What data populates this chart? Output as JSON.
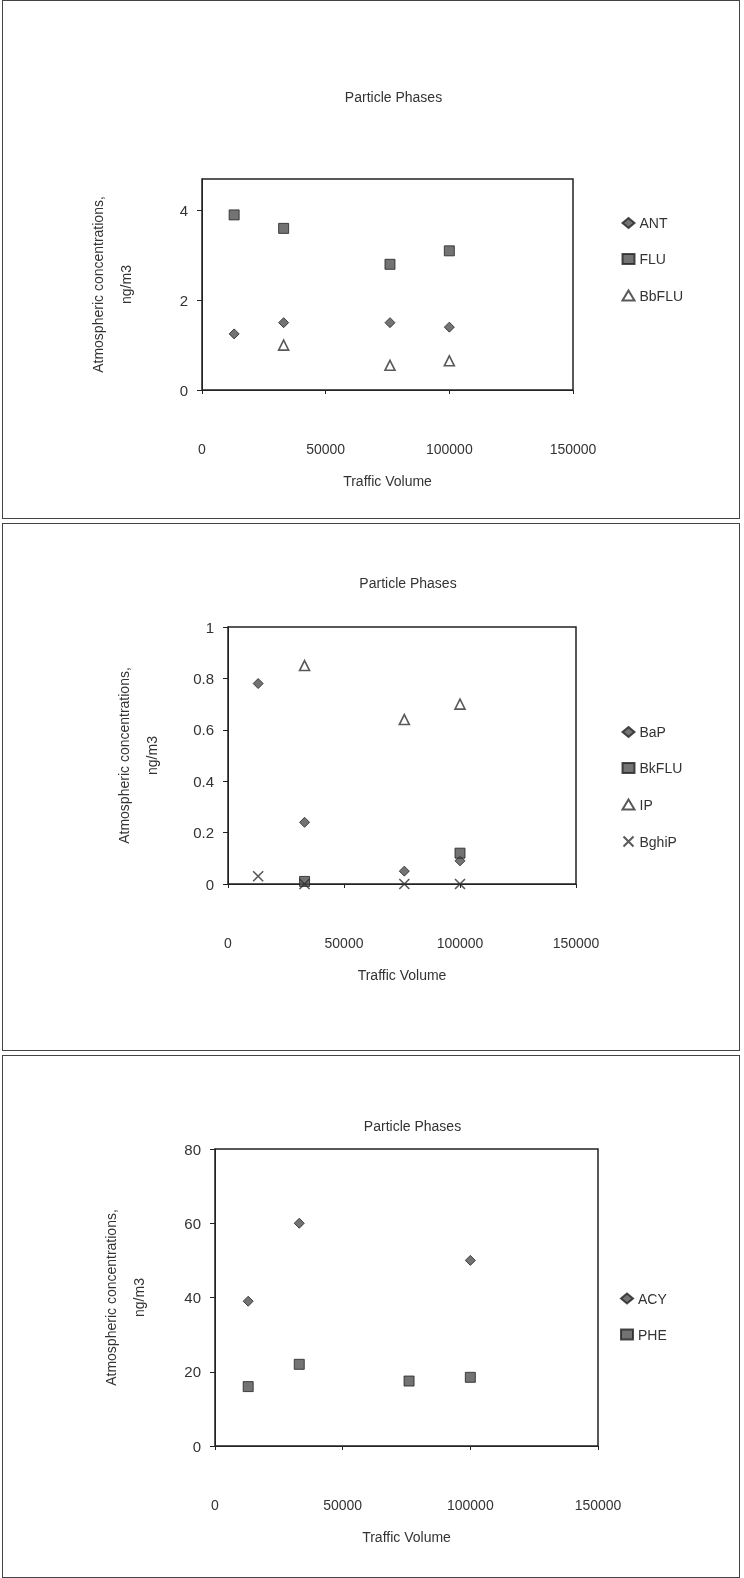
{
  "chart_data": [
    {
      "type": "scatter",
      "title": "Particle Phases",
      "xlabel": "Traffic Volume",
      "ylabel": "Atmospheric concentrations,\nng/m3",
      "x": [
        13000,
        33000,
        76000,
        100000
      ],
      "xlim": [
        0,
        150000
      ],
      "xticks": [
        0,
        50000,
        100000,
        150000
      ],
      "ylim": [
        0,
        4.7
      ],
      "yticks": [
        0,
        2,
        4
      ],
      "grid": false,
      "legend": "right",
      "series": [
        {
          "name": "ANT",
          "color": "#505050",
          "marker": "diamond",
          "values": [
            1.25,
            1.5,
            1.5,
            1.4
          ]
        },
        {
          "name": "FLU",
          "color": "#505050",
          "marker": "square",
          "values": [
            3.9,
            3.6,
            2.8,
            3.1
          ]
        },
        {
          "name": "BbFLU",
          "color": "#303030",
          "marker": "triangle",
          "values": [
            null,
            1.0,
            0.55,
            0.65
          ]
        }
      ]
    },
    {
      "type": "scatter",
      "title": "Particle Phases",
      "xlabel": "Traffic Volume",
      "ylabel": "Atmospheric concentrations,\nng/m3",
      "x": [
        13000,
        33000,
        76000,
        100000
      ],
      "xlim": [
        0,
        150000
      ],
      "xticks": [
        0,
        50000,
        100000,
        150000
      ],
      "ylim": [
        0,
        1
      ],
      "yticks": [
        0,
        0.2,
        0.4,
        0.6,
        0.8,
        1
      ],
      "grid": false,
      "legend": "right",
      "series": [
        {
          "name": "BaP",
          "color": "#505050",
          "marker": "diamond",
          "values": [
            0.78,
            0.24,
            0.05,
            0.09
          ]
        },
        {
          "name": "BkFLU",
          "color": "#505050",
          "marker": "square",
          "values": [
            null,
            0.01,
            null,
            0.12
          ]
        },
        {
          "name": "IP",
          "color": "#303030",
          "marker": "triangle",
          "values": [
            null,
            0.85,
            0.64,
            0.7
          ]
        },
        {
          "name": "BghiP",
          "color": "#303030",
          "marker": "cross",
          "values": [
            0.03,
            0,
            0,
            0
          ]
        }
      ]
    },
    {
      "type": "scatter",
      "title": "Particle Phases",
      "xlabel": "Traffic Volume",
      "ylabel": "Atmospheric concentrations,\nng/m3",
      "x": [
        13000,
        33000,
        76000,
        100000
      ],
      "xlim": [
        0,
        150000
      ],
      "xticks": [
        0,
        50000,
        100000,
        150000
      ],
      "ylim": [
        0,
        80
      ],
      "yticks": [
        0,
        20,
        40,
        60,
        80
      ],
      "grid": false,
      "legend": "right",
      "series": [
        {
          "name": "ACY",
          "color": "#505050",
          "marker": "diamond",
          "values": [
            39,
            60,
            null,
            50
          ]
        },
        {
          "name": "PHE",
          "color": "#505050",
          "marker": "square",
          "values": [
            16,
            22,
            17.5,
            18.5
          ]
        }
      ]
    }
  ]
}
